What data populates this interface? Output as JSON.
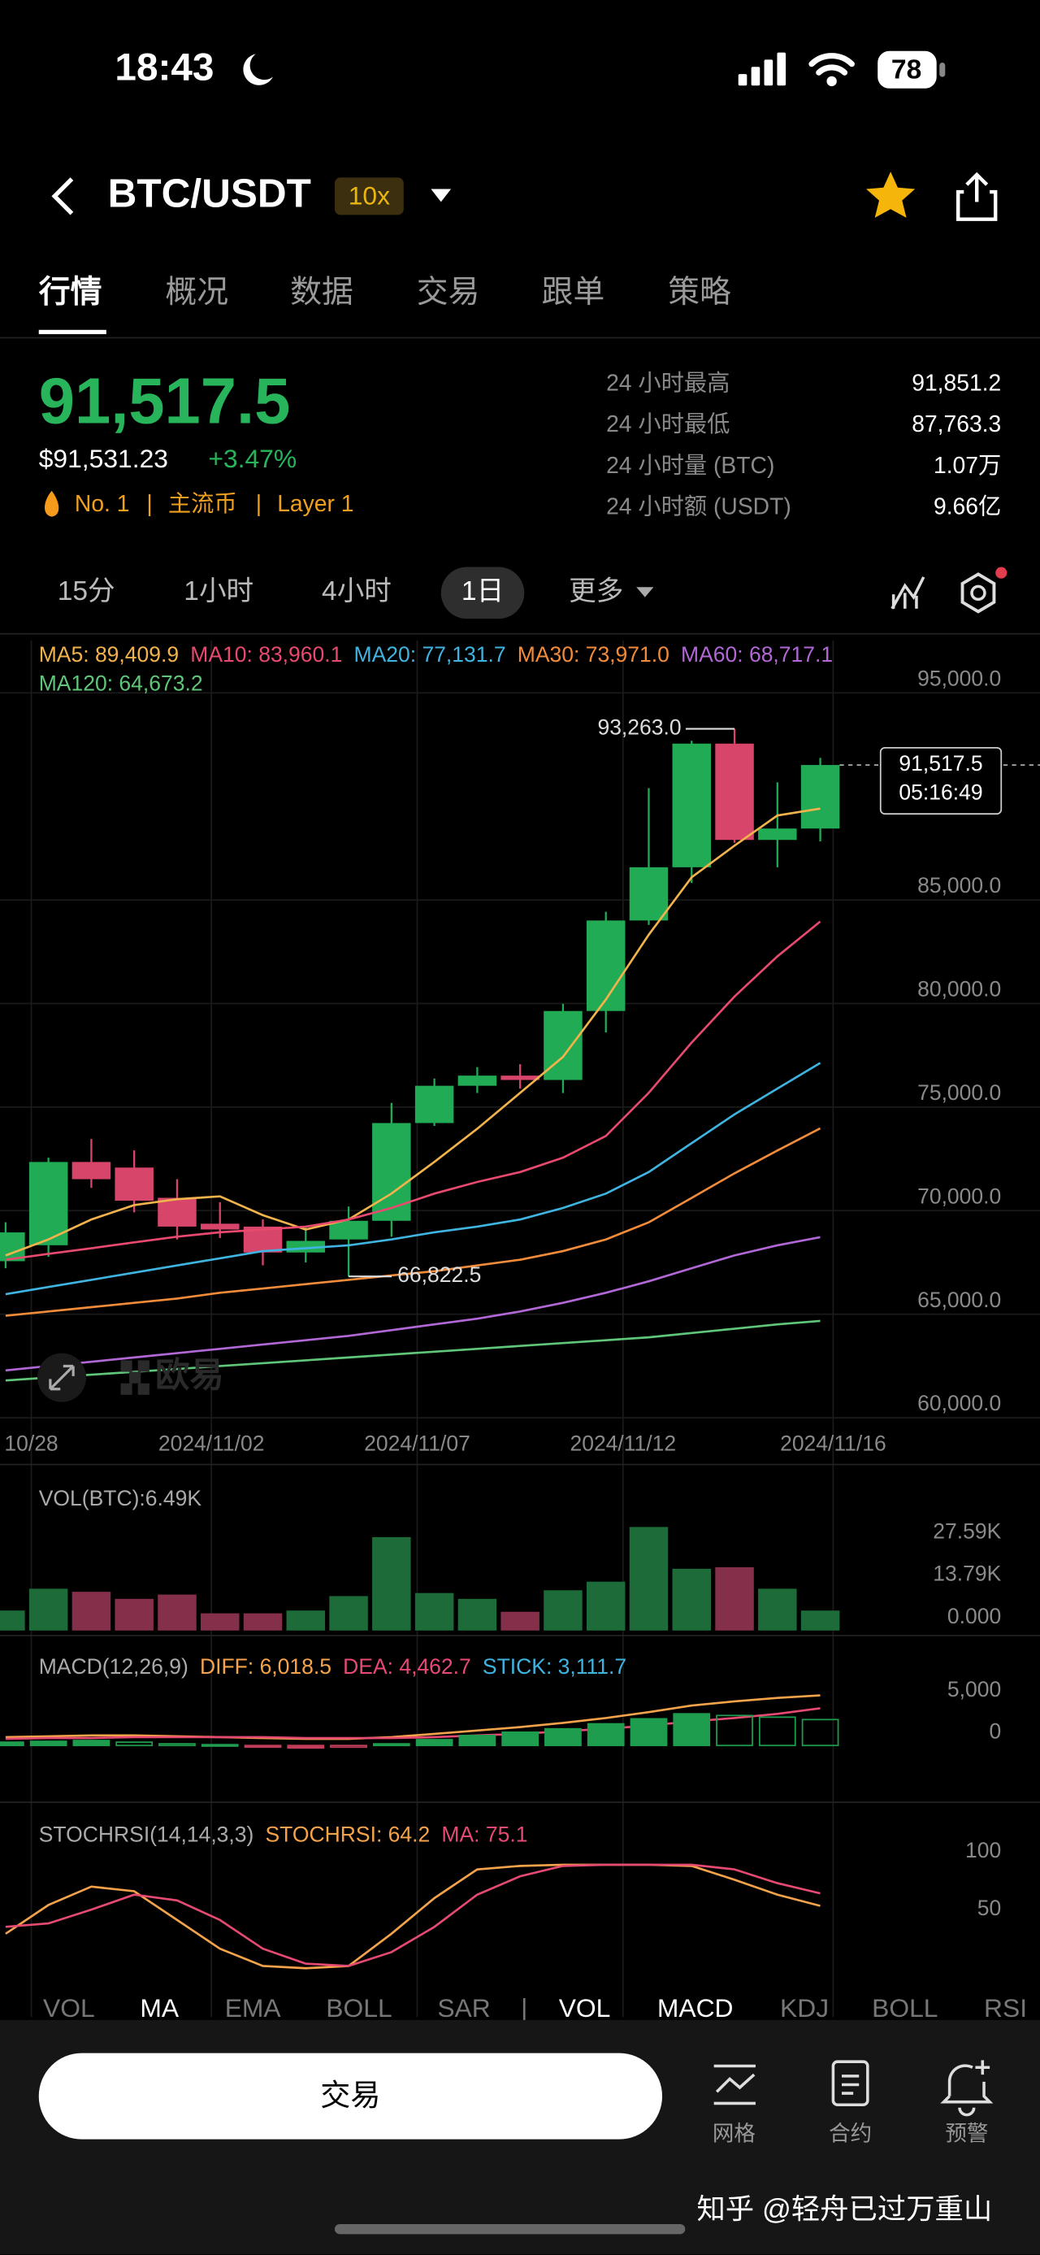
{
  "status_bar": {
    "time": "18:43",
    "battery": "78"
  },
  "header": {
    "title": "BTC/USDT",
    "leverage": "10x"
  },
  "tabs": [
    "行情",
    "概况",
    "数据",
    "交易",
    "跟单",
    "策略"
  ],
  "price": {
    "last": "91,517.5",
    "usd": "$91,531.23",
    "change": "+3.47%",
    "rank": "No. 1",
    "sep": "|",
    "tag1": "主流币",
    "tag2": "Layer 1"
  },
  "stats": [
    {
      "label": "24 小时最高",
      "value": "91,851.2"
    },
    {
      "label": "24 小时最低",
      "value": "87,763.3"
    },
    {
      "label": "24 小时量 (BTC)",
      "value": "1.07万"
    },
    {
      "label": "24 小时额 (USDT)",
      "value": "9.66亿"
    }
  ],
  "timeframes": [
    "15分",
    "1小时",
    "4小时",
    "1日",
    "更多"
  ],
  "chart_data": [
    {
      "type": "candlestick",
      "open": [
        67560,
        68330,
        72350,
        72080,
        70620,
        69370,
        69230,
        67980,
        68610,
        69510,
        74230,
        76030,
        76520,
        76310,
        79640,
        84010,
        86580,
        92550,
        87900,
        88450
      ],
      "high": [
        69440,
        72560,
        73460,
        72910,
        71520,
        70410,
        69580,
        69230,
        70200,
        75200,
        76380,
        76930,
        77070,
        79990,
        84430,
        90400,
        92690,
        93263,
        90680,
        91860
      ],
      "low": [
        67220,
        67770,
        71100,
        69920,
        68610,
        68680,
        67360,
        67500,
        66822.5,
        68740,
        74090,
        75680,
        75890,
        75680,
        78600,
        83800,
        85820,
        87760,
        86580,
        87830
      ],
      "close": [
        68950,
        72350,
        71520,
        70480,
        69230,
        69090,
        67980,
        68540,
        69510,
        74230,
        76030,
        76520,
        76310,
        79640,
        84010,
        86580,
        92550,
        87900,
        88450,
        91517.5
      ],
      "up_color": "#22ab55",
      "down_color": "#d8456a",
      "series": [
        {
          "name": "MA5: 89,409.9",
          "color": "#f2b24c",
          "values": [
            67842,
            68606,
            69577,
            70271,
            70549,
            70688,
            69785,
            69091,
            69577,
            70826,
            72353,
            73949,
            75684,
            77419,
            80195,
            83318,
            86094,
            87621,
            89079,
            89409.9
          ]
        },
        {
          "name": "MA10: 83,960.1",
          "color": "#e8496e",
          "values": [
            67634,
            67912,
            68189,
            68467,
            68744,
            68953,
            69091,
            69230,
            69577,
            70132,
            70826,
            71382,
            71867,
            72561,
            73602,
            75684,
            78113,
            80334,
            82277,
            83960.1
          ]
        },
        {
          "name": "MA20: 77,131.7",
          "color": "#3fb4e0",
          "values": [
            65968,
            66315,
            66662,
            67009,
            67356,
            67703,
            68050,
            68189,
            68328,
            68606,
            68953,
            69230,
            69577,
            70132,
            70826,
            71867,
            73255,
            74643,
            75893,
            77131.7
          ]
        },
        {
          "name": "MA30: 73,971.0",
          "color": "#f28c3a",
          "values": [
            64927,
            65136,
            65344,
            65552,
            65760,
            66038,
            66246,
            66454,
            66662,
            66871,
            67079,
            67356,
            67634,
            68050,
            68606,
            69438,
            70618,
            71798,
            72908,
            73971
          ]
        },
        {
          "name": "MA60: 68,717.1",
          "color": "#b267d6",
          "values": [
            62290,
            62498,
            62707,
            62915,
            63123,
            63331,
            63539,
            63748,
            63956,
            64233,
            64511,
            64789,
            65136,
            65552,
            66038,
            66593,
            67218,
            67842,
            68328,
            68717.1
          ]
        },
        {
          "name": "MA120: 64,673.2",
          "color": "#5fc67a",
          "values": [
            61804,
            61943,
            62082,
            62221,
            62360,
            62498,
            62637,
            62776,
            62915,
            63054,
            63192,
            63331,
            63470,
            63609,
            63748,
            63886,
            64095,
            64303,
            64511,
            64673.2
          ]
        }
      ],
      "ylim": [
        59720,
        97400
      ],
      "yticks": [
        {
          "value": 60000,
          "label": "60,000.0"
        },
        {
          "value": 65000,
          "label": "65,000.0"
        },
        {
          "value": 70000,
          "label": "70,000.0"
        },
        {
          "value": 75000,
          "label": "75,000.0"
        },
        {
          "value": 80000,
          "label": "80,000.0"
        },
        {
          "value": 85000,
          "label": "85,000.0"
        },
        {
          "value": 95000,
          "label": "95,000.0"
        }
      ],
      "xlim": [
        -0.13,
        19.97
      ],
      "xticks": [
        {
          "value": 0.6,
          "label": "10/28"
        },
        {
          "value": 4.8,
          "label": "2024/11/02"
        },
        {
          "value": 9.6,
          "label": "2024/11/07"
        },
        {
          "value": 14.4,
          "label": "2024/11/12"
        },
        {
          "value": 19.3,
          "label": "2024/11/16"
        }
      ],
      "grid": true,
      "high_label": "93,263.0",
      "low_label": "66,822.5",
      "price_label": "91,517.5",
      "countdown": "05:16:49",
      "watermark": "欧易"
    },
    {
      "type": "bar",
      "title": "VOL(BTC):6.49K",
      "values": [
        6500,
        13600,
        12600,
        10300,
        11700,
        5600,
        5600,
        6500,
        11200,
        30400,
        12200,
        10300,
        6100,
        13100,
        15900,
        33700,
        20100,
        20600,
        13600,
        6490
      ],
      "up_color": "#1c6b38",
      "down_color": "#84304a",
      "ylim": [
        0,
        39290
      ],
      "yticks": [
        {
          "value": 0,
          "label": "0.000"
        },
        {
          "value": 13790,
          "label": "13.79K"
        },
        {
          "value": 27590,
          "label": "27.59K"
        }
      ],
      "grid": false
    },
    {
      "type": "macd",
      "title": "MACD(12,26,9)",
      "series": [
        {
          "name": "DIFF: 6,018.5",
          "color": "#f5a34a",
          "style": "line",
          "values": [
            1000,
            1100,
            1200,
            1200,
            1100,
            1000,
            900,
            800,
            800,
            1000,
            1400,
            1800,
            2200,
            2700,
            3300,
            4000,
            4800,
            5300,
            5700,
            6018.5
          ]
        },
        {
          "name": "DEA: 4,462.7",
          "color": "#e64a73",
          "style": "line",
          "values": [
            800,
            900,
            900,
            1000,
            1000,
            1000,
            1000,
            900,
            900,
            900,
            1000,
            1200,
            1400,
            1700,
            2000,
            2400,
            2900,
            3300,
            3800,
            4462.7
          ]
        },
        {
          "name": "STICK: 3,111.7",
          "color": "#3fb4e0",
          "style": "bar",
          "up_color": "#1f9d4f",
          "down_color": "#c23d5a",
          "values": [
            400,
            500,
            600,
            400,
            200,
            100,
            -200,
            -300,
            -200,
            200,
            700,
            1200,
            1600,
            2000,
            2600,
            3200,
            3800,
            3600,
            3400,
            3111.7
          ]
        }
      ],
      "ylim": [
        -6207,
        11034
      ],
      "yticks": [
        0,
        {
          "value": 5000,
          "label": "5,000"
        }
      ],
      "grid": false
    },
    {
      "type": "line",
      "title": "STOCHRSI(14,14,3,3)",
      "series": [
        {
          "name": "STOCHRSI: 64.2",
          "color": "#f5a34a",
          "values": [
            40,
            65,
            81,
            77,
            52,
            27,
            12,
            10,
            12,
            40,
            71,
            96,
            99,
            100,
            100,
            100,
            99,
            87,
            74,
            64.2
          ]
        },
        {
          "name": "MA: 75.1",
          "color": "#e64a73",
          "values": [
            46,
            49,
            61,
            74,
            69,
            52,
            27,
            14,
            12,
            24,
            46,
            74,
            90,
            99,
            100,
            100,
            100,
            96,
            84,
            75.1
          ]
        }
      ],
      "ylim": [
        -16.25,
        140
      ],
      "yticks": [
        50,
        100
      ],
      "grid": false
    }
  ],
  "indicator_tabs": [
    "VOL",
    "MA",
    "EMA",
    "BOLL",
    "SAR",
    "|",
    "VOL",
    "MACD",
    "KDJ",
    "BOLL",
    "RSI"
  ],
  "bottom_bar": {
    "button": "交易",
    "items": [
      "网格",
      "合约",
      "预警"
    ]
  },
  "watermark": "知乎 @轻舟已过万重山"
}
